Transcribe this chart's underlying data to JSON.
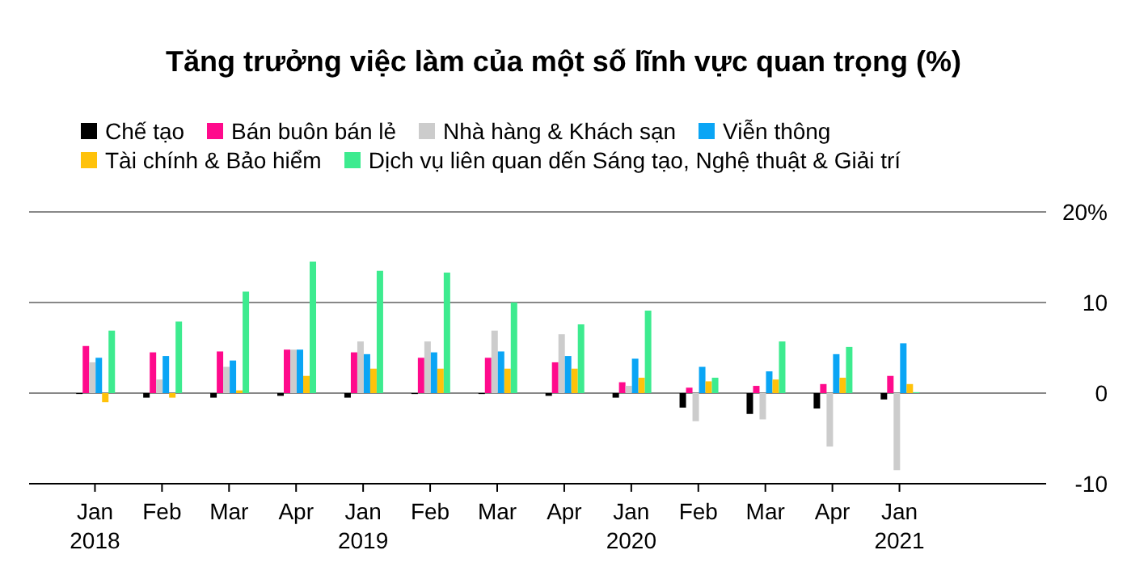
{
  "chart_data": {
    "type": "bar",
    "title": "Tăng trưởng việc làm của một số lĩnh vực quan trọng (%)",
    "categories": [
      "Jan 2018",
      "Feb",
      "Mar",
      "Apr",
      "Jan 2019",
      "Feb",
      "Mar",
      "Apr",
      "Jan 2020",
      "Feb",
      "Mar",
      "Apr",
      "Jan 2021"
    ],
    "series": [
      {
        "name": "Chế tạo",
        "color": "#000000",
        "values": [
          -0.1,
          -0.5,
          -0.5,
          -0.3,
          -0.5,
          -0.1,
          -0.1,
          -0.3,
          -0.5,
          -1.6,
          -2.3,
          -1.7,
          -0.7
        ]
      },
      {
        "name": "Bán buôn bán lẻ",
        "color": "#ff0a8c",
        "values": [
          5.2,
          4.5,
          4.6,
          4.8,
          4.5,
          3.9,
          3.9,
          3.4,
          1.2,
          0.6,
          0.8,
          1.0,
          1.9
        ]
      },
      {
        "name": "Nhà hàng & Khách sạn",
        "color": "#cccccc",
        "values": [
          3.4,
          1.5,
          2.9,
          4.8,
          5.7,
          5.7,
          6.9,
          6.5,
          0.8,
          -3.1,
          -2.9,
          -5.9,
          -8.5
        ]
      },
      {
        "name": "Viễn thông",
        "color": "#0aa5f5",
        "values": [
          3.9,
          4.1,
          3.6,
          4.8,
          4.3,
          4.5,
          4.6,
          4.1,
          3.8,
          2.9,
          2.4,
          4.3,
          5.5
        ]
      },
      {
        "name": "Tài chính & Bảo hiểm",
        "color": "#ffc20a",
        "values": [
          -1.0,
          -0.5,
          0.3,
          1.9,
          2.7,
          2.7,
          2.7,
          2.7,
          1.7,
          1.3,
          1.5,
          1.7,
          1.0
        ]
      },
      {
        "name": "Dịch vụ liên quan dến Sáng tạo, Nghệ thuật & Giải trí",
        "color": "#3deb8f",
        "values": [
          6.9,
          7.9,
          11.2,
          14.5,
          13.5,
          13.3,
          10.0,
          7.6,
          9.1,
          1.7,
          5.7,
          5.1,
          0.1
        ]
      }
    ],
    "ylim": [
      -10,
      20
    ],
    "yticks": [
      {
        "value": -10,
        "label": "-10"
      },
      0,
      10,
      {
        "value": 20,
        "label": "20%"
      }
    ],
    "grid": "y",
    "legend": "top left"
  }
}
